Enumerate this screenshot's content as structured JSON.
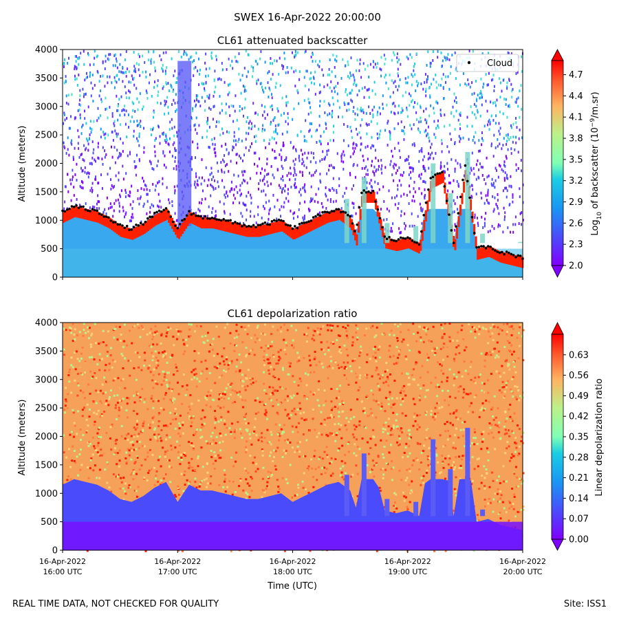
{
  "figure": {
    "suptitle": "SWEX 16-Apr-2022 20:00:00",
    "footer_left": "REAL TIME DATA, NOT CHECKED FOR QUALITY",
    "footer_right": "Site: ISS1"
  },
  "chart_data": [
    {
      "type": "heatmap",
      "title": "CL61 attenuated backscatter",
      "ylabel": "Altitude (meters)",
      "xlabel": "",
      "ylim": [
        0,
        4000
      ],
      "yticks": [
        0,
        500,
        1000,
        1500,
        2000,
        2500,
        3000,
        3500,
        4000
      ],
      "x_time_range": [
        "16-Apr-2022 16:00 UTC",
        "16-Apr-2022 20:00 UTC"
      ],
      "legend": {
        "label": "Cloud",
        "marker": "black dot",
        "position": "top-right"
      },
      "colorbar": {
        "label_parts": [
          "Log",
          "10",
          " of backscatter (10",
          "−9",
          "/m.sr)"
        ],
        "range": [
          2.0,
          4.9
        ],
        "ticks": [
          "2.0",
          "2.3",
          "2.6",
          "2.9",
          "3.2",
          "3.5",
          "3.8",
          "4.1",
          "4.4",
          "4.7"
        ],
        "colormap": "rainbow",
        "extend": "both"
      },
      "cloud_base_height_m": {
        "hours": [
          0.0,
          0.1,
          0.2,
          0.3,
          0.4,
          0.5,
          0.6,
          0.7,
          0.8,
          0.9,
          1.0,
          1.1,
          1.2,
          1.3,
          1.4,
          1.5,
          1.6,
          1.7,
          1.8,
          1.9,
          2.0,
          2.1,
          2.2,
          2.3,
          2.4,
          2.5,
          2.55,
          2.6,
          2.7,
          2.8,
          2.9,
          3.0,
          3.1,
          3.2,
          3.3,
          3.4,
          3.5,
          3.6,
          3.7,
          3.8,
          3.9,
          4.0
        ],
        "values": [
          1150,
          1250,
          1200,
          1150,
          1050,
          900,
          850,
          950,
          1100,
          1200,
          850,
          1150,
          1050,
          1050,
          1000,
          950,
          900,
          900,
          950,
          1000,
          850,
          950,
          1050,
          1150,
          1200,
          1050,
          750,
          1500,
          1500,
          700,
          650,
          700,
          600,
          1750,
          1850,
          600,
          1950,
          500,
          550,
          450,
          400,
          350
        ]
      }
    },
    {
      "type": "heatmap",
      "title": "CL61 depolarization ratio",
      "ylabel": "Altitude (meters)",
      "xlabel": "Time (UTC)",
      "ylim": [
        0,
        4000
      ],
      "yticks": [
        0,
        500,
        1000,
        1500,
        2000,
        2500,
        3000,
        3500,
        4000
      ],
      "x_time_range": [
        "16-Apr-2022 16:00 UTC",
        "16-Apr-2022 20:00 UTC"
      ],
      "xticks": [
        {
          "date": "16-Apr-2022",
          "time": "16:00 UTC"
        },
        {
          "date": "16-Apr-2022",
          "time": "17:00 UTC"
        },
        {
          "date": "16-Apr-2022",
          "time": "18:00 UTC"
        },
        {
          "date": "16-Apr-2022",
          "time": "19:00 UTC"
        },
        {
          "date": "16-Apr-2022",
          "time": "20:00 UTC"
        }
      ],
      "colorbar": {
        "label": "Linear depolarization ratio",
        "range": [
          0.0,
          0.7
        ],
        "ticks": [
          "0.00",
          "0.07",
          "0.14",
          "0.21",
          "0.28",
          "0.35",
          "0.42",
          "0.49",
          "0.56",
          "0.63"
        ],
        "colormap": "rainbow",
        "extend": "both"
      }
    }
  ]
}
